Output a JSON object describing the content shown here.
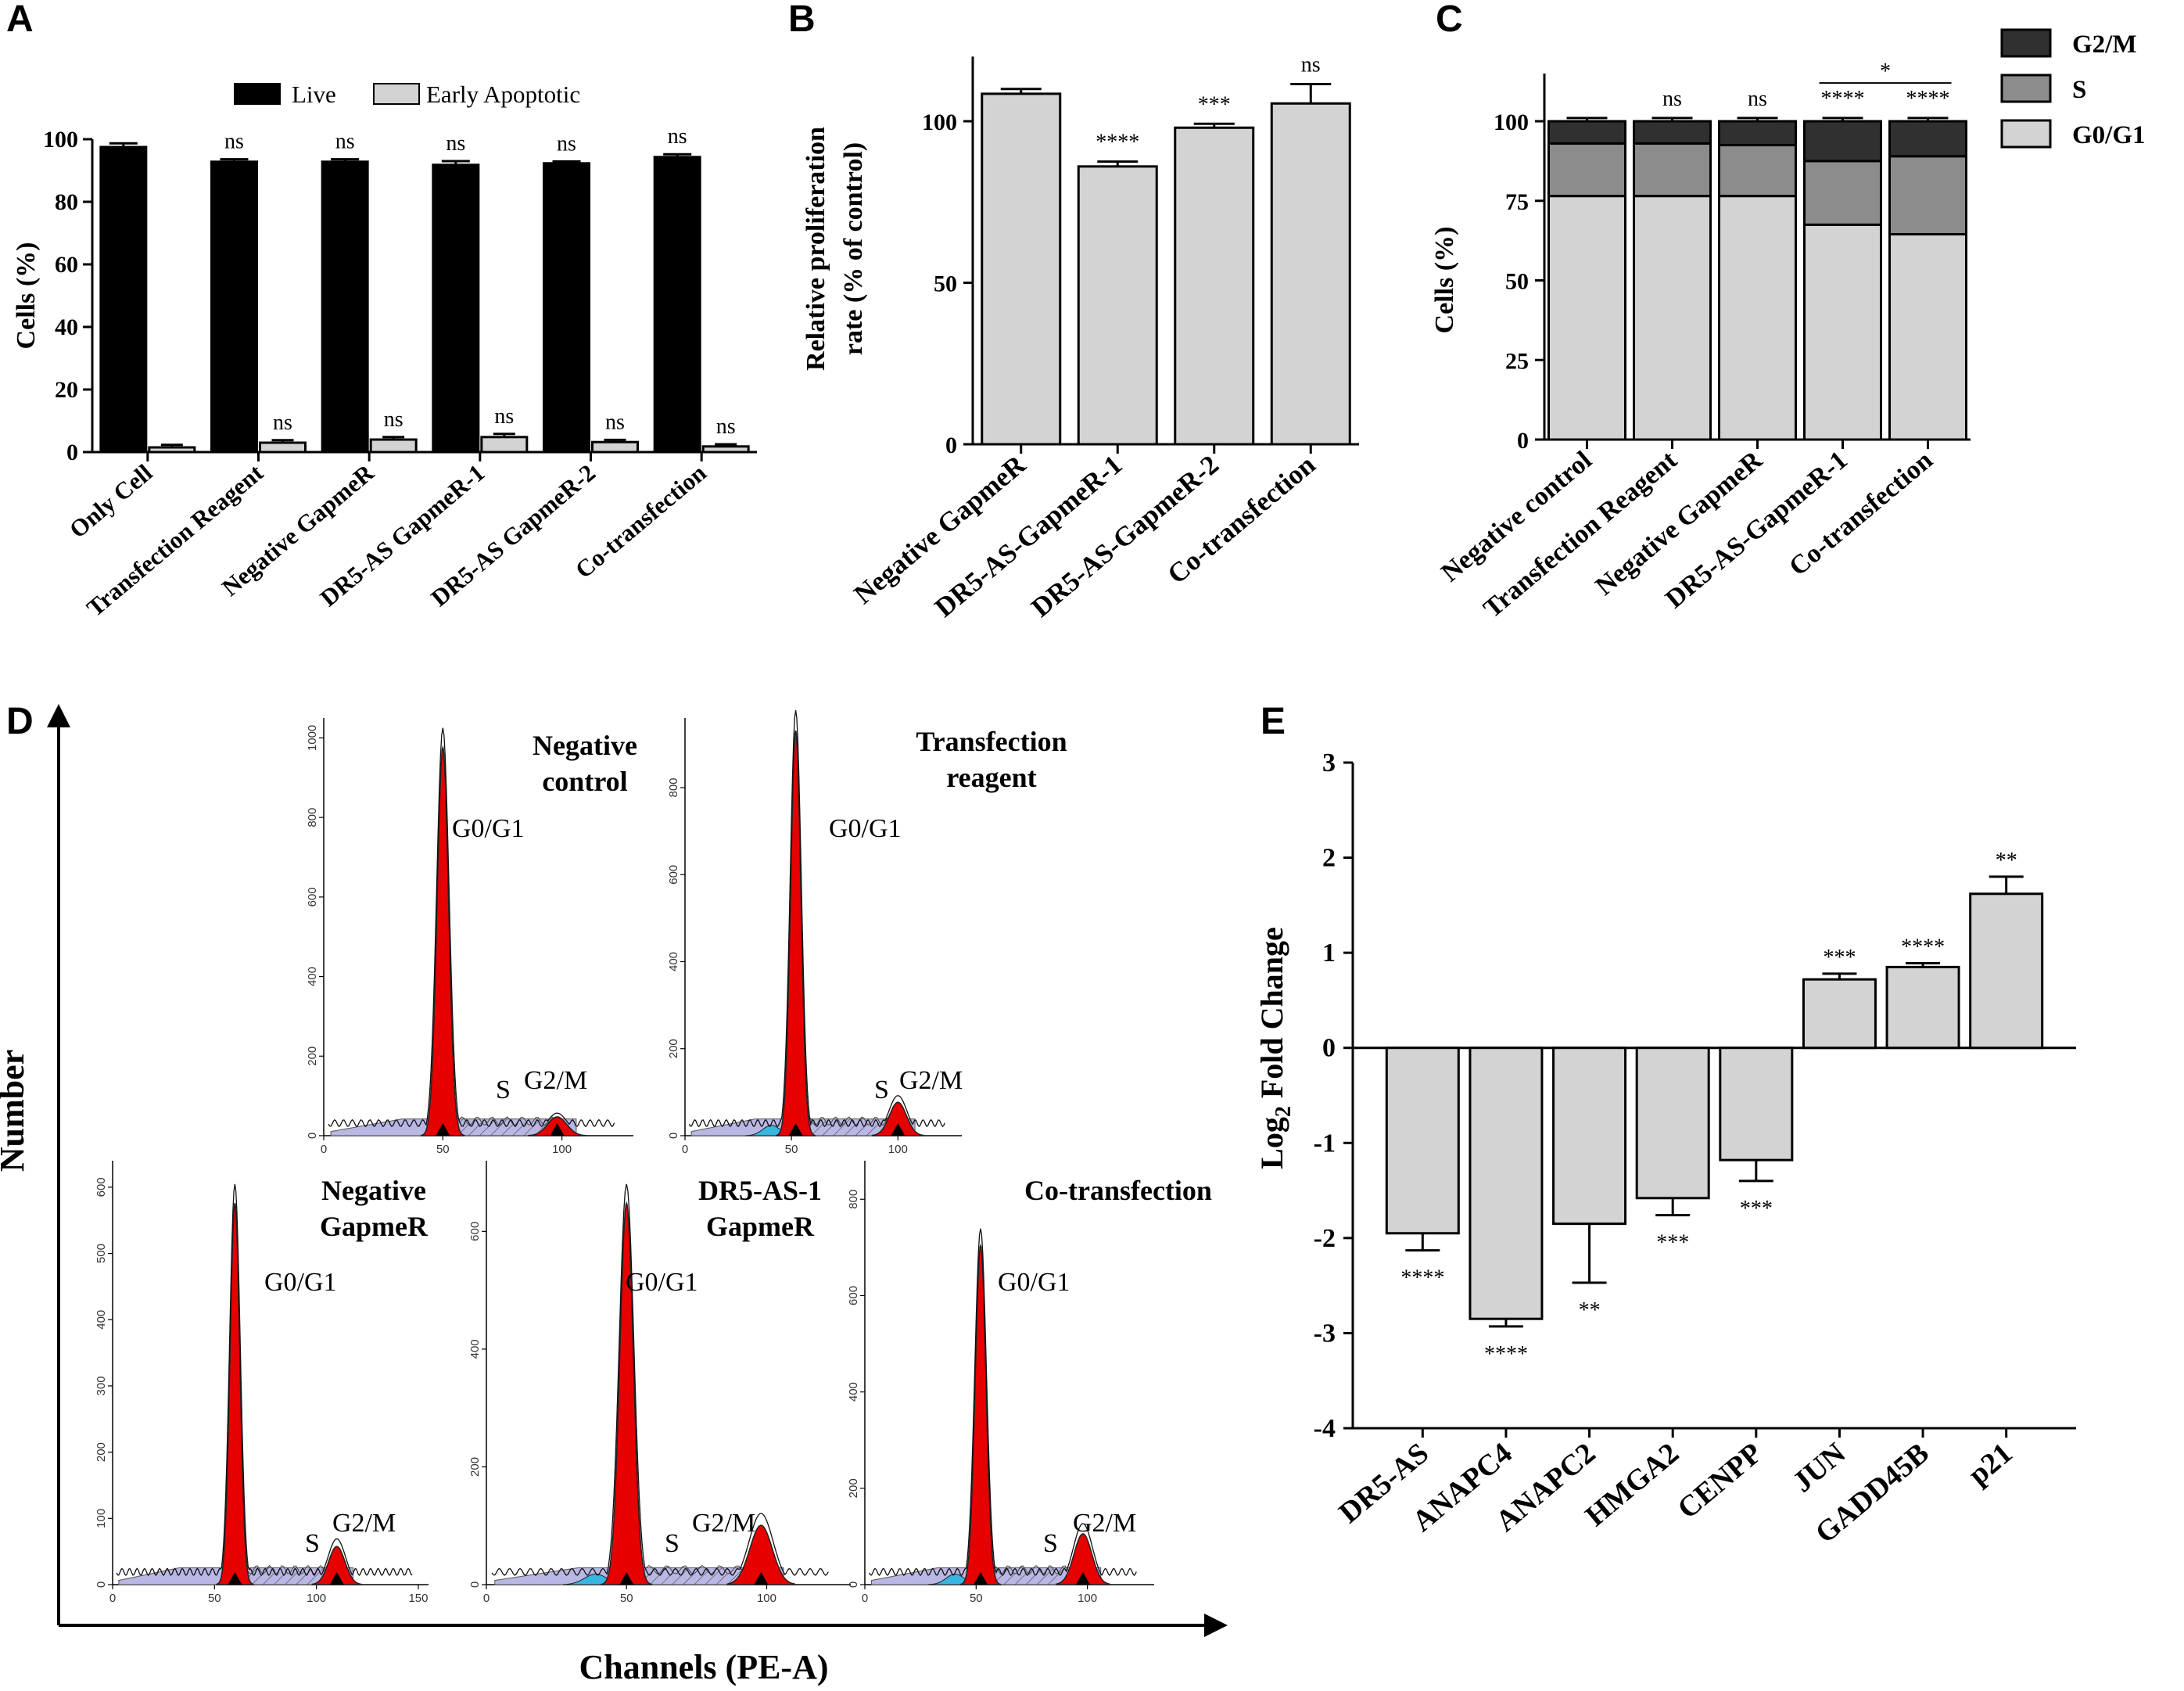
{
  "colors": {
    "live": "#000000",
    "apoptotic": "#d3d3d3",
    "bar": "#d3d3d3",
    "g2m": "#303030",
    "s": "#8c8c8c",
    "g0g1": "#d3d3d3",
    "peak": "#e60000",
    "s_fill": "#b9b7e3",
    "debris": "#39b6e0"
  },
  "panels": {
    "A": "A",
    "B": "B",
    "C": "C",
    "D": "D",
    "E": "E"
  },
  "chart_data": [
    {
      "id": "A",
      "type": "bar",
      "ylabel": "Cells (%)",
      "ylim": [
        0,
        100
      ],
      "yticks": [
        "0",
        "20",
        "40",
        "60",
        "80",
        "100"
      ],
      "categories": [
        "Only Cell",
        "Transfection Reagent",
        "Negative GapmeR",
        "DR5-AS GapmeR-1",
        "DR5-AS GapmeR-2",
        "Co-transfection"
      ],
      "series": [
        {
          "name": "Live",
          "values": [
            97.5,
            92.8,
            92.8,
            91.8,
            92.3,
            94.3
          ],
          "errors": [
            1.2,
            0.8,
            0.8,
            1.2,
            0.6,
            0.9
          ],
          "sig": [
            "",
            "ns",
            "ns",
            "ns",
            "ns",
            "ns"
          ]
        },
        {
          "name": "Early Apoptotic",
          "values": [
            1.5,
            3.0,
            4.0,
            4.8,
            3.2,
            1.8
          ],
          "errors": [
            0.8,
            0.8,
            0.8,
            1.0,
            0.7,
            0.7
          ],
          "sig": [
            "",
            "ns",
            "ns",
            "ns",
            "ns",
            "ns"
          ]
        }
      ]
    },
    {
      "id": "B",
      "type": "bar",
      "ylabel": "Relative proliferation rate (% of control)",
      "ylabel_lines": [
        "Relative proliferation",
        "rate (% of control)"
      ],
      "ylim": [
        0,
        120
      ],
      "yticks": [
        "0",
        "50",
        "100"
      ],
      "categories": [
        "Negative GapmeR",
        "DR5-AS-GapmeR-1",
        "DR5-AS-GapmeR-2",
        "Co-transfection"
      ],
      "values": [
        108.5,
        86,
        98,
        105.5
      ],
      "errors": [
        1.5,
        1.5,
        1.2,
        6
      ],
      "sig": [
        "",
        "****",
        "***",
        "ns"
      ]
    },
    {
      "id": "C",
      "type": "bar",
      "stacked": true,
      "ylabel": "Cells (%)",
      "ylim": [
        0,
        115
      ],
      "yticks": [
        "0",
        "25",
        "50",
        "75",
        "100"
      ],
      "categories": [
        "Negative control",
        "Transfection Reagent",
        "Negative GapmeR",
        "DR5-AS-GapmeR-1",
        "Co-transfection"
      ],
      "series": [
        {
          "name": "G0/G1",
          "values": [
            76.5,
            76.5,
            76.5,
            67.5,
            64.5
          ],
          "errors": [
            1,
            2,
            1,
            1.5,
            1
          ]
        },
        {
          "name": "S",
          "values": [
            16.5,
            16.5,
            16,
            20,
            24.5
          ],
          "errors": [
            1,
            3,
            1,
            2,
            1.5
          ]
        },
        {
          "name": "G2/M",
          "values": [
            7,
            7,
            7.5,
            12.5,
            11
          ],
          "errors": [
            1,
            1,
            1,
            1,
            1
          ]
        }
      ],
      "sig": [
        "",
        "ns",
        "ns",
        "****",
        "****"
      ],
      "bracket": {
        "from": "DR5-AS-GapmeR-1",
        "to": "Co-transfection",
        "label": "*"
      }
    },
    {
      "id": "D",
      "type": "histogram",
      "xlabel": "Channels (PE-A)",
      "ylabel": "Number",
      "plots": [
        {
          "title": [
            "Negative",
            "control"
          ],
          "xticks": [
            "0",
            "50",
            "100"
          ],
          "yticks": [
            "0",
            "200",
            "400",
            "600",
            "800",
            "1000"
          ],
          "peaks": [
            "G0/G1",
            "S",
            "G2/M"
          ]
        },
        {
          "title": [
            "Transfection",
            "reagent"
          ],
          "xticks": [
            "0",
            "50",
            "100"
          ],
          "yticks": [
            "0",
            "200",
            "400",
            "600",
            "800"
          ],
          "peaks": [
            "G0/G1",
            "S",
            "G2/M"
          ]
        },
        {
          "title": [
            "Negative",
            "GapmeR"
          ],
          "xticks": [
            "0",
            "50",
            "100",
            "150"
          ],
          "yticks": [
            "0",
            "100",
            "200",
            "300",
            "400",
            "500",
            "600"
          ],
          "peaks": [
            "G0/G1",
            "S",
            "G2/M"
          ]
        },
        {
          "title": [
            "DR5-AS-1",
            "GapmeR"
          ],
          "xticks": [
            "0",
            "50",
            "100"
          ],
          "yticks": [
            "0",
            "200",
            "400",
            "600"
          ],
          "peaks": [
            "G0/G1",
            "S",
            "G2/M"
          ]
        },
        {
          "title": [
            "Co-transfection"
          ],
          "xticks": [
            "0",
            "50",
            "100"
          ],
          "yticks": [
            "0",
            "200",
            "400",
            "600",
            "800"
          ],
          "peaks": [
            "G0/G1",
            "S",
            "G2/M"
          ]
        }
      ]
    },
    {
      "id": "E",
      "type": "bar",
      "ylabel": "Log2 Fold Change",
      "ylabel_parts": [
        "Log",
        "2",
        "Fold  Change"
      ],
      "ylim": [
        -4,
        3
      ],
      "yticks": [
        "-4",
        "-3",
        "-2",
        "-1",
        "0",
        "1",
        "2",
        "3"
      ],
      "categories": [
        "DR5-AS",
        "ANAPC4",
        "ANAPC2",
        "HMGA2",
        "CENPP",
        "JUN",
        "GADD45B",
        "p21"
      ],
      "values": [
        -1.95,
        -2.85,
        -1.85,
        -1.58,
        -1.18,
        0.72,
        0.85,
        1.62
      ],
      "errors": [
        0.18,
        0.08,
        0.62,
        0.18,
        0.22,
        0.06,
        0.04,
        0.18
      ],
      "sig": [
        "****",
        "****",
        "**",
        "***",
        "***",
        "***",
        "****",
        "**"
      ]
    }
  ]
}
